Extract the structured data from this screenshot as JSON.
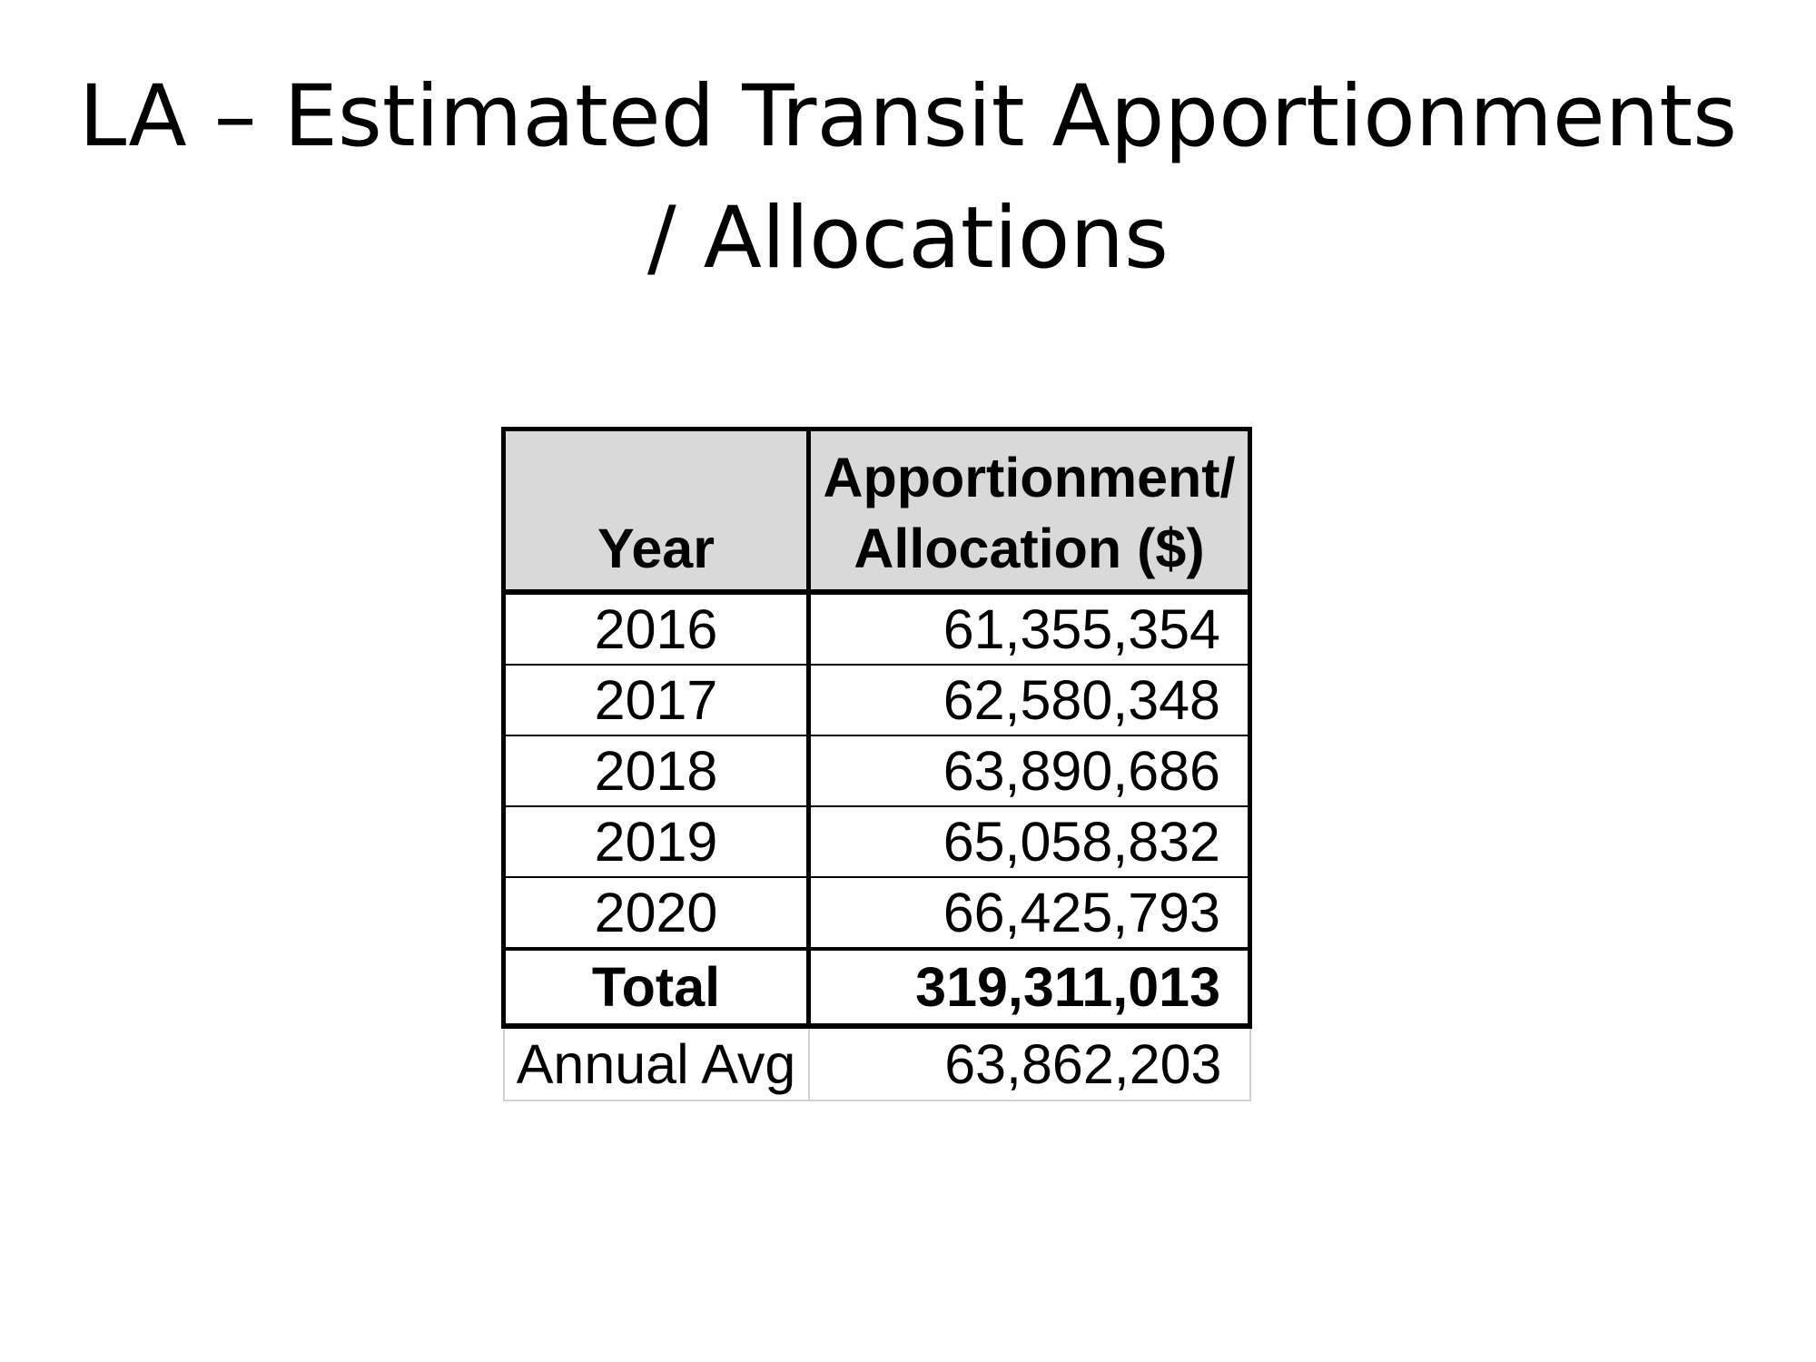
{
  "title": {
    "line1": "LA – Estimated Transit Apportionments",
    "line2": "/ Allocations"
  },
  "table": {
    "headers": {
      "year": "Year",
      "amount_line1": "Apportionment/",
      "amount_line2": "Allocation ($)"
    },
    "rows": [
      {
        "year": "2016",
        "amount": "61,355,354"
      },
      {
        "year": "2017",
        "amount": "62,580,348"
      },
      {
        "year": "2018",
        "amount": "63,890,686"
      },
      {
        "year": "2019",
        "amount": "65,058,832"
      },
      {
        "year": "2020",
        "amount": "66,425,793"
      }
    ],
    "total": {
      "label": "Total",
      "amount": "319,311,013"
    },
    "annual_avg": {
      "label": "Annual Avg",
      "amount": "63,862,203"
    }
  },
  "colors": {
    "header_fill": "#d9d9d9",
    "border": "#000000",
    "light_border": "#d0d0d0"
  }
}
